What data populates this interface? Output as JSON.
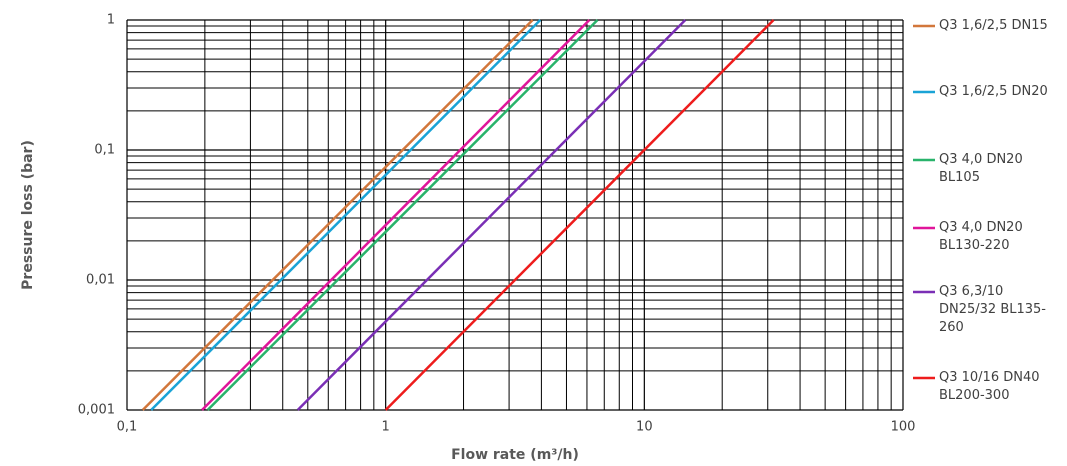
{
  "chart_data": {
    "type": "line",
    "x_label": "Flow rate (m³/h)",
    "y_label": "Pressure loss (bar)",
    "xscale": "log",
    "yscale": "log",
    "grid": true,
    "minor_grid": true,
    "legend": "right",
    "xlim": [
      0.1,
      100
    ],
    "ylim": [
      0.001,
      1
    ],
    "xticks": [
      {
        "value": 0.1,
        "label": "0,1"
      },
      1,
      10,
      100
    ],
    "yticks": [
      {
        "value": 0.001,
        "label": "0,001"
      },
      {
        "value": 0.01,
        "label": "0,01"
      },
      {
        "value": 0.1,
        "label": "0,1"
      },
      1
    ],
    "series": [
      {
        "name": "Q3 1,6/2,5 DN15",
        "color": "#d2773b",
        "x": [
          0.115,
          3.7
        ],
        "values": [
          0.001,
          1
        ]
      },
      {
        "name": "Q3 1,6/2,5 DN20",
        "color": "#1aa3d6",
        "x": [
          0.124,
          3.96
        ],
        "values": [
          0.001,
          1
        ]
      },
      {
        "name": "Q3 4,0 DN20 BL105",
        "color": "#29b36b",
        "x": [
          0.205,
          6.59
        ],
        "values": [
          0.001,
          1
        ]
      },
      {
        "name": "Q3 4,0 DN20 BL130-220",
        "color": "#e0159a",
        "x": [
          0.195,
          6.13
        ],
        "values": [
          0.001,
          1
        ]
      },
      {
        "name": "Q3 6,3/10 DN25/32 BL135-260",
        "color": "#7a2fb5",
        "x": [
          0.457,
          14.4
        ],
        "values": [
          0.001,
          1
        ]
      },
      {
        "name": "Q3 10/16 DN40 BL200-300",
        "color": "#ee1c1c",
        "x": [
          1,
          31.6
        ],
        "values": [
          0.001,
          1
        ]
      }
    ]
  }
}
